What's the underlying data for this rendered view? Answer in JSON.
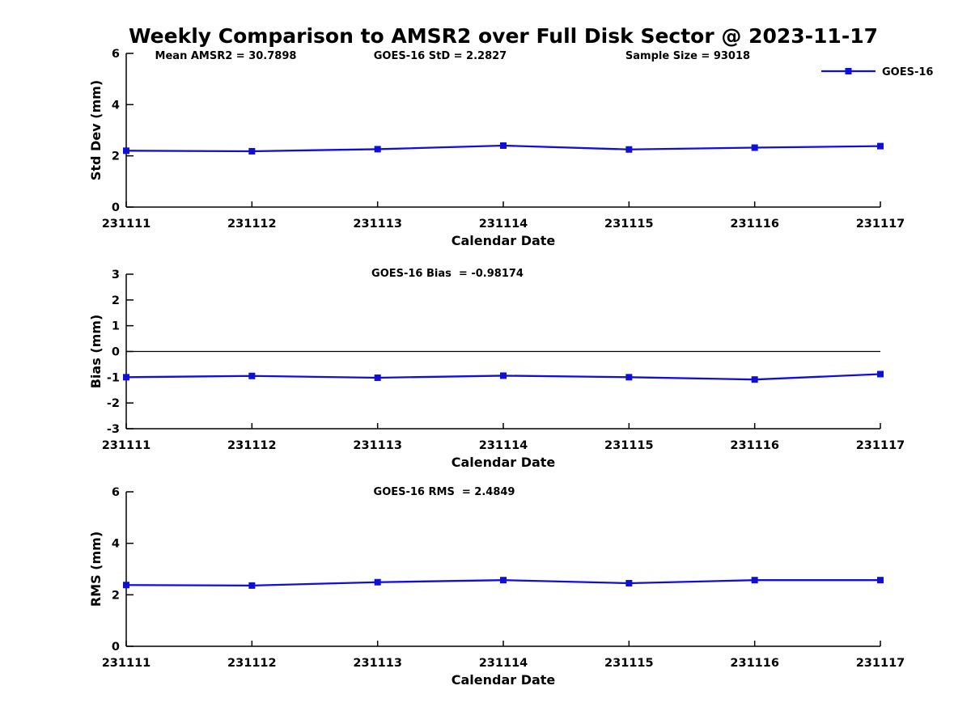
{
  "figure": {
    "title": "Weekly Comparison to AMSR2 over Full Disk Sector @ 2023-11-17",
    "background_color": "#ffffff",
    "line_color": "#0f0fd8",
    "axis_color": "#000000",
    "text_color": "#000000"
  },
  "legend": {
    "label": "GOES-16",
    "position": "top-right",
    "marker": "square"
  },
  "chart_data": [
    {
      "type": "line",
      "id": "std-dev",
      "annotations": [
        "Mean AMSR2 = 30.7898",
        "GOES-16 StD = 2.2827",
        "Sample Size = 93018"
      ],
      "xlabel": "Calendar Date",
      "ylabel": "Std Dev (mm)",
      "categories": [
        "231111",
        "231112",
        "231113",
        "231114",
        "231115",
        "231116",
        "231117"
      ],
      "series": [
        {
          "name": "GOES-16",
          "values": [
            2.2,
            2.18,
            2.26,
            2.4,
            2.25,
            2.32,
            2.38
          ]
        }
      ],
      "ylim": [
        0,
        6
      ],
      "yticks": [
        0,
        2,
        4,
        6
      ],
      "zero_line": false,
      "grid": false,
      "legend_visible": true
    },
    {
      "type": "line",
      "id": "bias",
      "annotations": [
        "GOES-16 Bias  = -0.98174"
      ],
      "xlabel": "Calendar Date",
      "ylabel": "Bias (mm)",
      "categories": [
        "231111",
        "231112",
        "231113",
        "231114",
        "231115",
        "231116",
        "231117"
      ],
      "series": [
        {
          "name": "GOES-16",
          "values": [
            -1.0,
            -0.95,
            -1.02,
            -0.94,
            -1.0,
            -1.09,
            -0.88
          ]
        }
      ],
      "ylim": [
        -3,
        3
      ],
      "yticks": [
        -3,
        -2,
        -1,
        0,
        1,
        2,
        3
      ],
      "zero_line": true,
      "grid": false,
      "legend_visible": false
    },
    {
      "type": "line",
      "id": "rms",
      "annotations": [
        "GOES-16 RMS  = 2.4849"
      ],
      "xlabel": "Calendar Date",
      "ylabel": "RMS (mm)",
      "categories": [
        "231111",
        "231112",
        "231113",
        "231114",
        "231115",
        "231116",
        "231117"
      ],
      "series": [
        {
          "name": "GOES-16",
          "values": [
            2.38,
            2.36,
            2.49,
            2.57,
            2.45,
            2.57,
            2.57
          ]
        }
      ],
      "ylim": [
        0,
        6
      ],
      "yticks": [
        0,
        2,
        4,
        6
      ],
      "zero_line": false,
      "grid": false,
      "legend_visible": false
    }
  ]
}
